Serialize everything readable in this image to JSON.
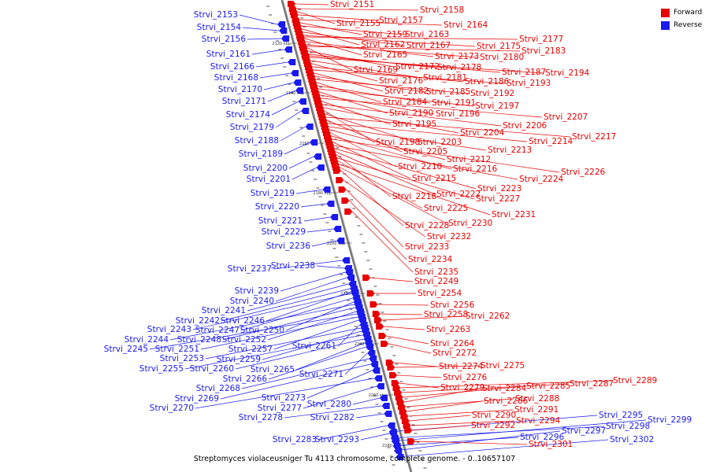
{
  "caption": "Streptomyces violaceusniger Tu 4113 chromosome, complete genome. - 0..10657107",
  "legend": [
    {
      "label": "Forward",
      "color": "#e80000"
    },
    {
      "label": "Reverse",
      "color": "#1a1aee"
    }
  ],
  "ticks": [
    "2120 kbp",
    "2140 kbp",
    "2160 kbp",
    "2180 kbp",
    "2200 kbp",
    "2220 kbp",
    "2240 kbp",
    "2260 kbp",
    "2280 kbp"
  ],
  "genes_reverse": [
    "Strvi_2153",
    "Strvi_2154",
    "Strvi_2156",
    "Strvi_2161",
    "Strvi_2166",
    "Strvi_2168",
    "Strvi_2170",
    "Strvi_2171",
    "Strvi_2174",
    "Strvi_2179",
    "Strvi_2188",
    "Strvi_2189",
    "Strvi_2200",
    "Strvi_2201",
    "Strvi_2219",
    "Strvi_2220",
    "Strvi_2221",
    "Strvi_2229",
    "Strvi_2236",
    "Strvi_2237",
    "Strvi_2238",
    "Strvi_2239",
    "Strvi_2240",
    "Strvi_2241",
    "Strvi_2242",
    "Strvi_2246",
    "Strvi_2243",
    "Strvi_2247",
    "Strvi_2250",
    "Strvi_2244",
    "Strvi_2248",
    "Strvi_2252",
    "Strvi_2245",
    "Strvi_2251",
    "Strvi_2257",
    "Strvi_2261",
    "Strvi_2253",
    "Strvi_2259",
    "Strvi_2255",
    "Strvi_2260",
    "Strvi_2265",
    "Strvi_2266",
    "Strvi_2271",
    "Strvi_2268",
    "Strvi_2269",
    "Strvi_2273",
    "Strvi_2270",
    "Strvi_2277",
    "Strvi_2280",
    "Strvi_2278",
    "Strvi_2282",
    "Strvi_2283",
    "Strvi_2293",
    "Strvi_2295",
    "Strvi_2298",
    "Strvi_2299",
    "Strvi_2296",
    "Strvi_2297",
    "Strvi_2302"
  ],
  "genes_forward": [
    "Strvi_2151",
    "Strvi_2158",
    "Strvi_2155",
    "Strvi_2157",
    "Strvi_2164",
    "Strvi_2159",
    "Strvi_2163",
    "Strvi_2162",
    "Strvi_2167",
    "Strvi_2175",
    "Strvi_2177",
    "Strvi_2165",
    "Strvi_2173",
    "Strvi_2180",
    "Strvi_2183",
    "Strvi_2169",
    "Strvi_2172",
    "Strvi_2178",
    "Strvi_2187",
    "Strvi_2194",
    "Strvi_2181",
    "Strvi_2176",
    "Strvi_2186",
    "Strvi_2193",
    "Strvi_2182",
    "Strvi_2185",
    "Strvi_2192",
    "Strvi_2184",
    "Strvi_2191",
    "Strvi_2197",
    "Strvi_2190",
    "Strvi_2196",
    "Strvi_2207",
    "Strvi_2195",
    "Strvi_2206",
    "Strvi_2204",
    "Strvi_2198",
    "Strvi_2203",
    "Strvi_2217",
    "Strvi_2205",
    "Strvi_2214",
    "Strvi_2213",
    "Strvi_2212",
    "Strvi_2210",
    "Strvi_2216",
    "Strvi_2226",
    "Strvi_2215",
    "Strvi_2224",
    "Strvi_2223",
    "Strvi_2222",
    "Strvi_2218",
    "Strvi_2227",
    "Strvi_2225",
    "Strvi_2231",
    "Strvi_2230",
    "Strvi_2228",
    "Strvi_2232",
    "Strvi_2233",
    "Strvi_2234",
    "Strvi_2235",
    "Strvi_2249",
    "Strvi_2254",
    "Strvi_2256",
    "Strvi_2258",
    "Strvi_2262",
    "Strvi_2263",
    "Strvi_2264",
    "Strvi_2272",
    "Strvi_2274",
    "Strvi_2275",
    "Strvi_2276",
    "Strvi_2279",
    "Strvi_2289",
    "Strvi_2287",
    "Strvi_2285",
    "Strvi_2284",
    "Strvi_2288",
    "Strvi_2286",
    "Strvi_2291",
    "Strvi_2290",
    "Strvi_2294",
    "Strvi_2292",
    "Strvi_2301"
  ]
}
